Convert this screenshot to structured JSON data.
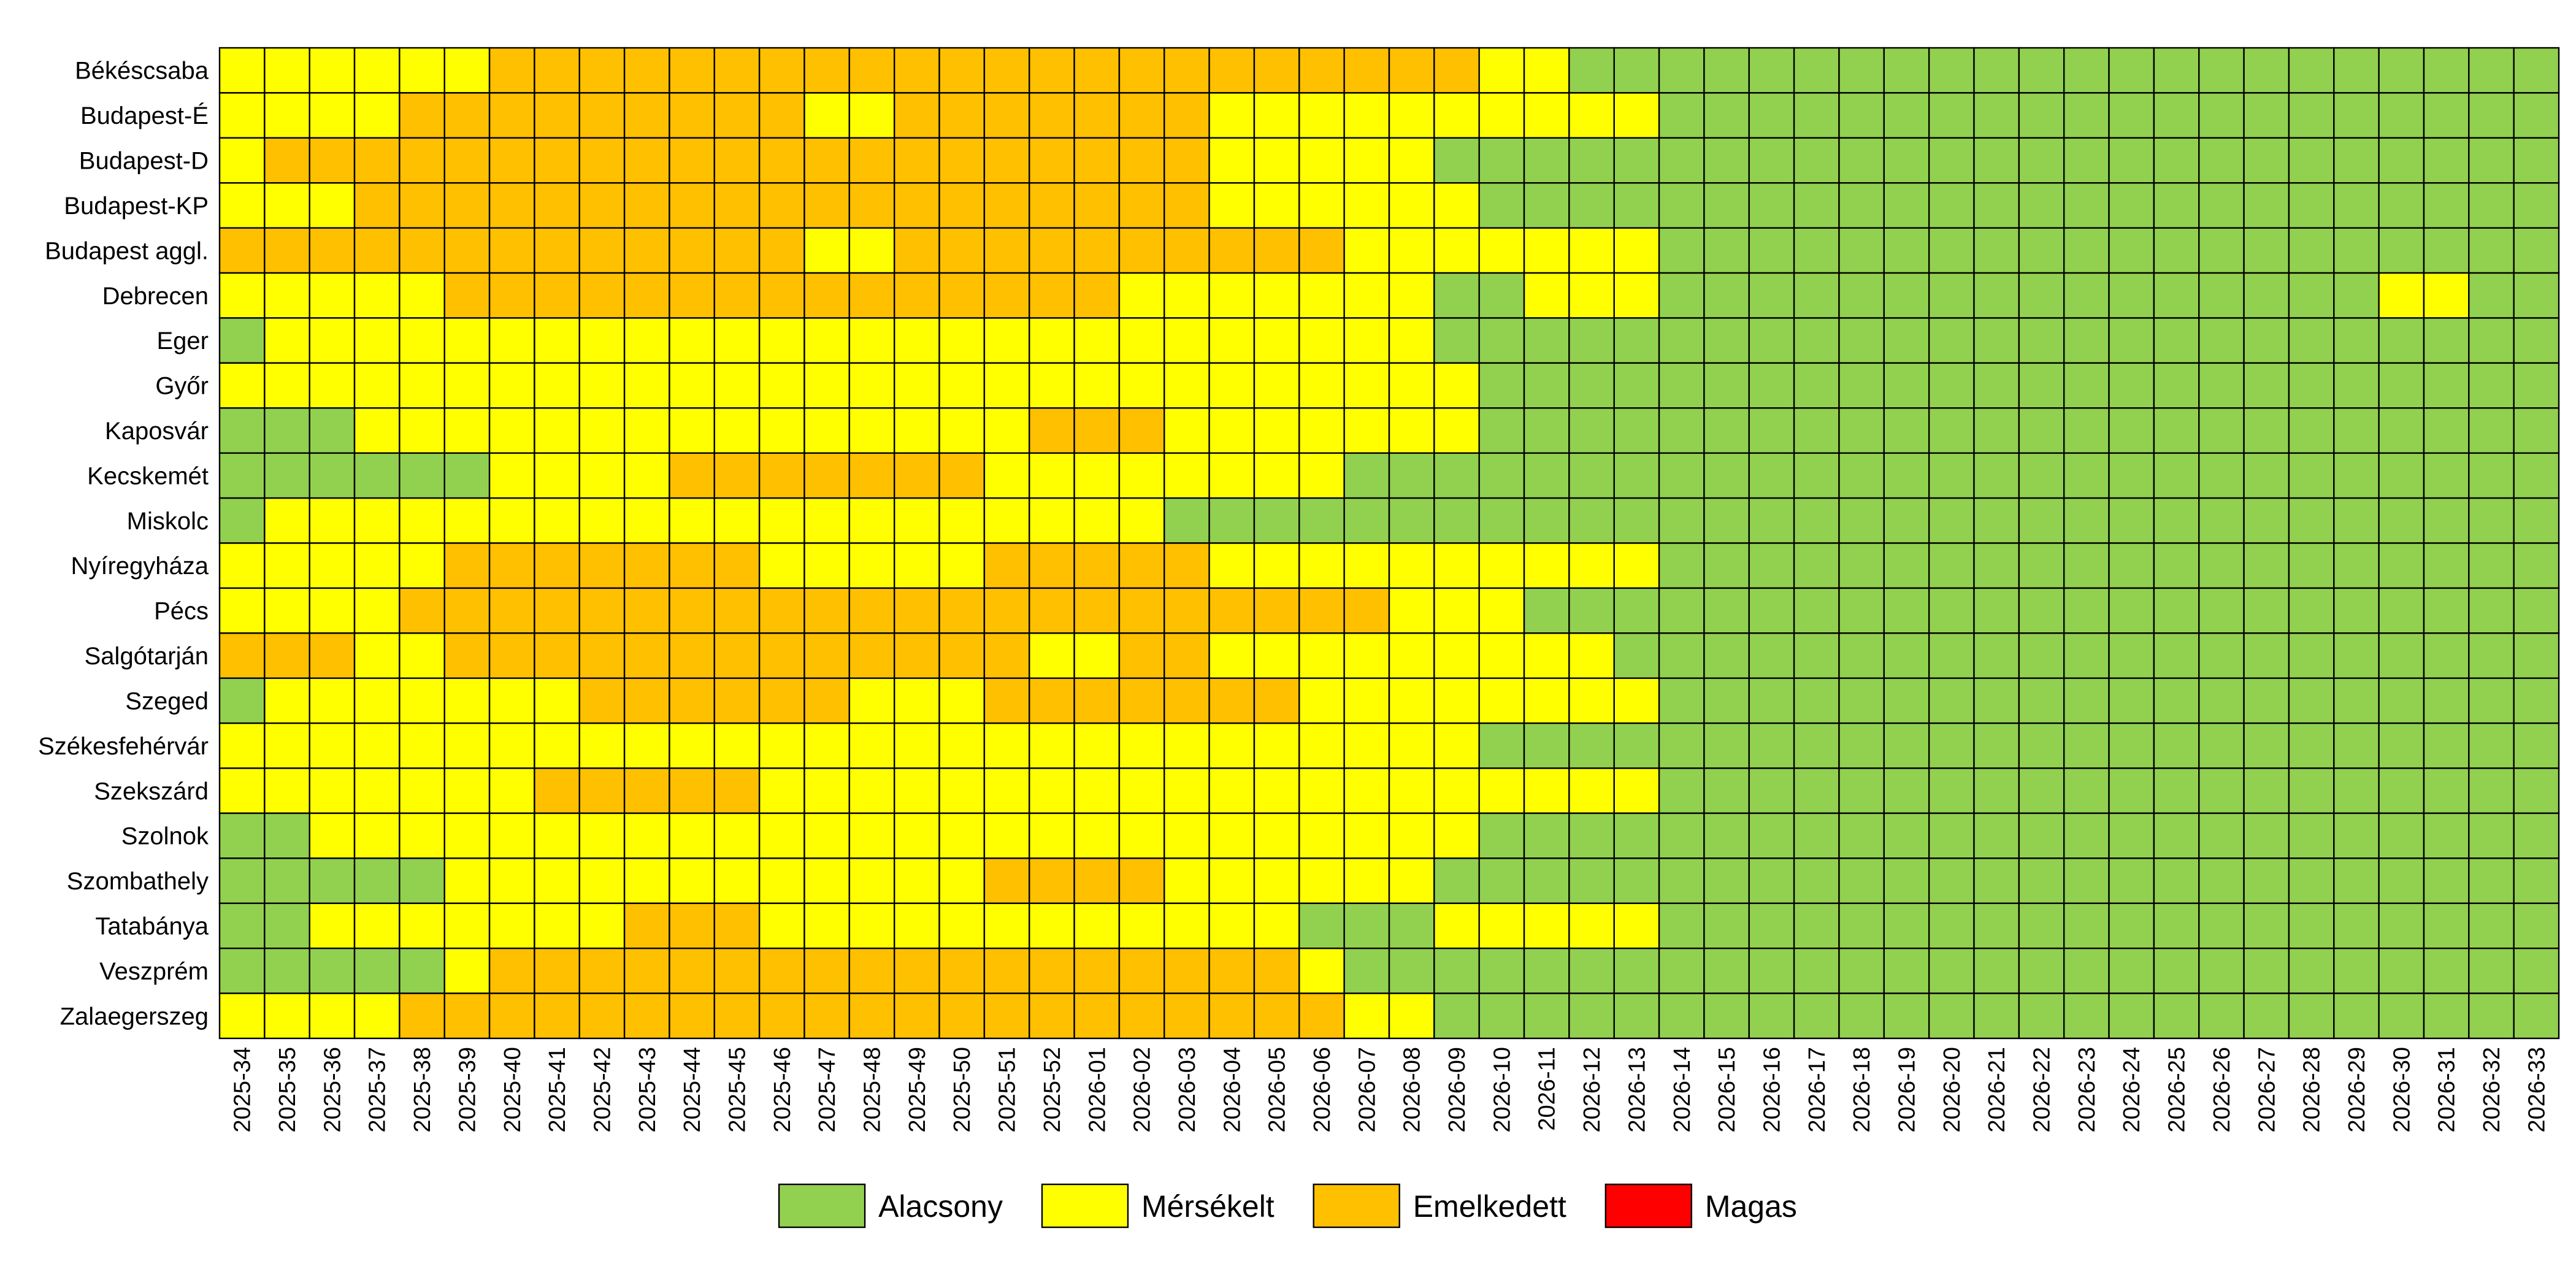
{
  "chart_data": {
    "type": "heatmap",
    "title": "",
    "xlabel": "",
    "ylabel": "",
    "rows": [
      "Békéscsaba",
      "Budapest-É",
      "Budapest-D",
      "Budapest-KP",
      "Budapest aggl.",
      "Debrecen",
      "Eger",
      "Győr",
      "Kaposvár",
      "Kecskemét",
      "Miskolc",
      "Nyíregyháza",
      "Pécs",
      "Salgótarján",
      "Szeged",
      "Székesfehérvár",
      "Szekszárd",
      "Szolnok",
      "Szombathely",
      "Tatabánya",
      "Veszprém",
      "Zalaegerszeg"
    ],
    "columns": [
      "2025-34",
      "2025-35",
      "2025-36",
      "2025-37",
      "2025-38",
      "2025-39",
      "2025-40",
      "2025-41",
      "2025-42",
      "2025-43",
      "2025-44",
      "2025-45",
      "2025-46",
      "2025-47",
      "2025-48",
      "2025-49",
      "2025-50",
      "2025-51",
      "2025-52",
      "2026-01",
      "2026-02",
      "2026-03",
      "2026-04",
      "2026-05",
      "2026-06",
      "2026-07",
      "2026-08",
      "2026-09",
      "2026-10",
      "2026-11",
      "2026-12",
      "2026-13",
      "2026-14",
      "2026-15",
      "2026-16",
      "2026-17",
      "2026-18",
      "2026-19",
      "2026-20",
      "2026-21",
      "2026-22",
      "2026-23",
      "2026-24",
      "2026-25",
      "2026-26",
      "2026-27",
      "2026-28",
      "2026-29",
      "2026-30",
      "2026-31",
      "2026-32",
      "2026-33"
    ],
    "levels": [
      {
        "code": "A",
        "name": "Alacsony",
        "color": "#92D050"
      },
      {
        "code": "M",
        "name": "Mérsékelt",
        "color": "#FFFF00"
      },
      {
        "code": "E",
        "name": "Emelkedett",
        "color": "#FFC000"
      },
      {
        "code": "H",
        "name": "Magas",
        "color": "#FF0000"
      }
    ],
    "legend_position": "bottom",
    "cells": [
      "MMMMMMEEEEEEEEEEEEEEEEEEEEEEMMAAAAAAAAAAAAAAAAAAAAAA",
      "MMMMEEEEEEEEEMMEEEEEEEMMMMMMMMMMAAAAAAAAAAAAAAAAAAAA",
      "MEEEEEEEEEEEEEEEEEEEEEMMMMMAAAAAAAAAAAAAAAAAAAAAAAAA",
      "MMMEEEEEEEEEEEEEEEEEEEMMMMMMAAAAAAAAAAAAAAAAAAAAAAAA",
      "EEEEEEEEEEEEEMMEEEEEEEEEEMMMMMMMAAAAAAAAAAAAAAAAAAAA",
      "MMMMMEEEEEEEEEEEEEEEMMMMMMMAAMMMAAAAAAAAAAAAAAAAMMAA",
      "AMMMMMMMMMMMMMMMMMMMMMMMMMMAAAAAAAAAAAAAAAAAAAAAAAAA",
      "MMMMMMMMMMMMMMMMMMMMMMMMMMMMAAAAAAAAAAAAAAAAAAAAAAAA",
      "AAAMMMMMMMMMMMMMMMEEEMMMMMMMAAAAAAAAAAAAAAAAAAAAAAAA",
      "AAAAAAMMMMEEEEEEEMMMMMMMMAAAAAAAAAAAAAAAAAAAAAAAAAAA",
      "AMMMMMMMMMMMMMMMMMMMMAAAAAAAAAAAAAAAAAAAAAAAAAAAAAAA",
      "MMMMMEEEEEEEMMMMMEEEEEMMMMMMMMMMAAAAAAAAAAAAAAAAAAAA",
      "MMMMEEEEEEEEEEEEEEEEEEEEEEMMMAAAAAAAAAAAAAAAAAAAAAAA",
      "EEEMMEEEEEEEEEEEEEMMEEMMMMMMMMMAAAAAAAAAAAAAAAAAAAAA",
      "AMMMMMMMEEEEEEMMMEEEEEEEMMMMMMMMAAAAAAAAAAAAAAAAAAAA",
      "MMMMMMMMMMMMMMMMMMMMMMMMMMMMAAAAAAAAAAAAAAAAAAAAAAAA",
      "MMMMMMMEEEEEMMMMMMMMMMMMMMMMMMMMAAAAAAAAAAAAAAAAAAAA",
      "AAMMMMMMMMMMMMMMMMMMMMMMMMMMAAAAAAAAAAAAAAAAAAAAAAAA",
      "AAAAAMMMMMMMMMMMMEEEEMMMMMMAAAAAAAAAAAAAAAAAAAAAAAAA",
      "AAMMMMMMMEEEMMMMMMMMMMMMAAAMMMMMAAAAAAAAAAAAAAAAAAAA",
      "AAAAAMEEEEEEEEEEEEEEEEEEMAAAAAAAAAAAAAAAAAAAAAAAAAAA",
      "MMMMEEEEEEEEEEEEEEEEEEEEEMMAAAAAAAAAAAAAAAAAAAAAAAAA"
    ]
  }
}
